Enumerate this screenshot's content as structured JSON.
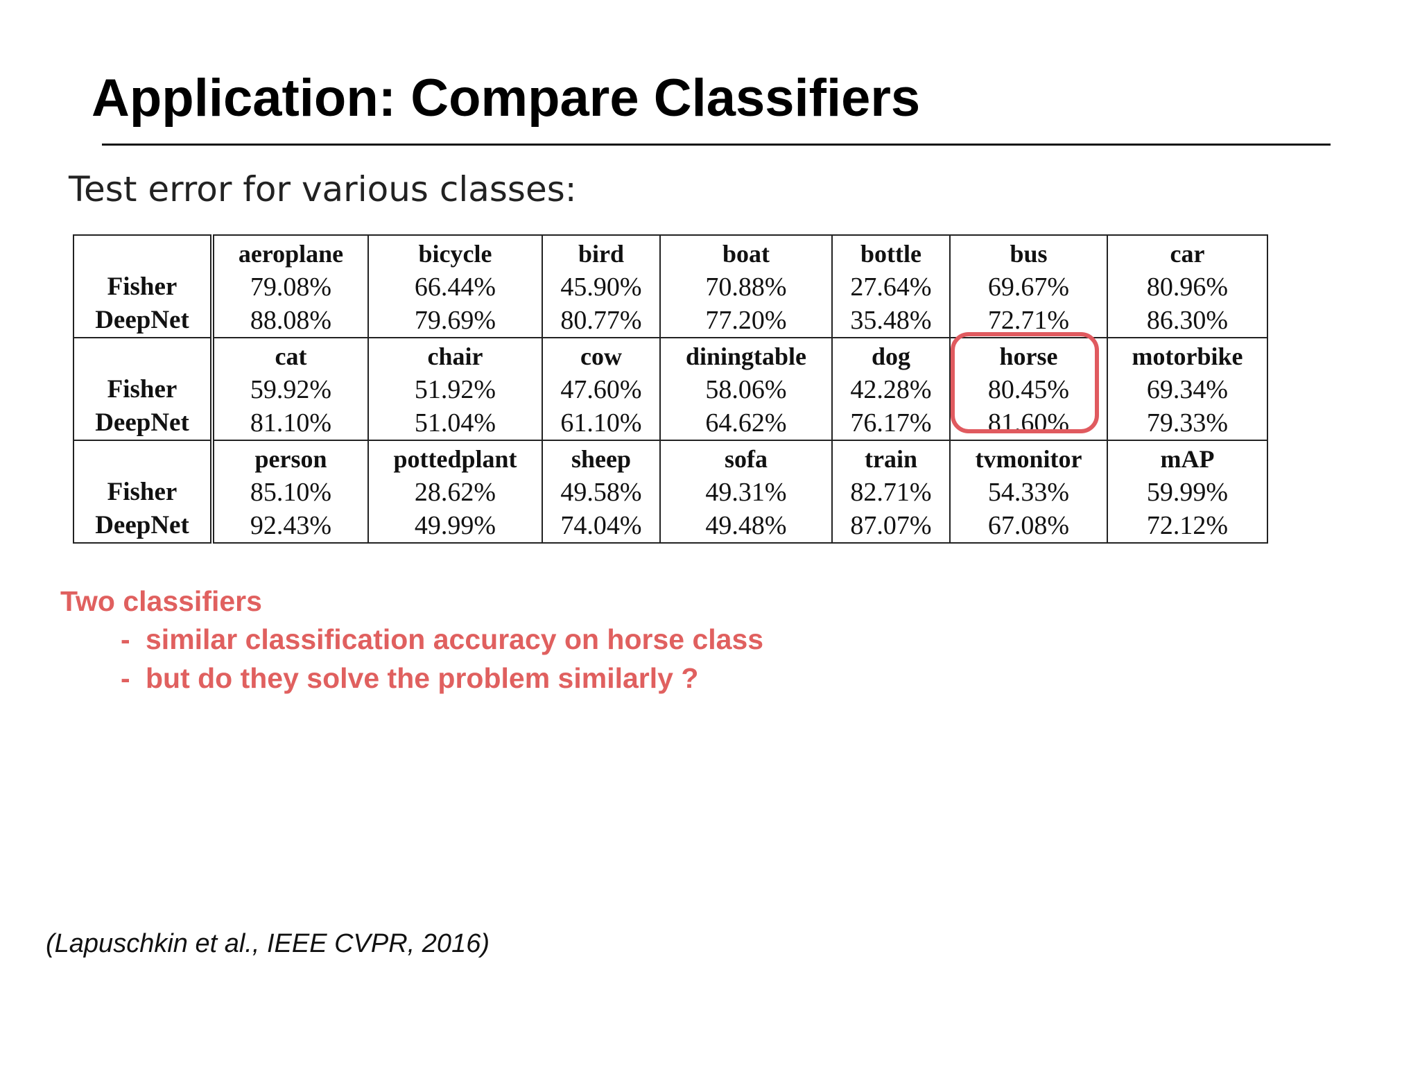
{
  "slide": {
    "title": "Application: Compare Classifiers",
    "subtitle": "Test error for various classes:"
  },
  "table": {
    "row_labels": [
      "Fisher",
      "DeepNet"
    ],
    "groups": [
      {
        "classes": [
          "aeroplane",
          "bicycle",
          "bird",
          "boat",
          "bottle",
          "bus",
          "car"
        ],
        "fisher": [
          "79.08%",
          "66.44%",
          "45.90%",
          "70.88%",
          "27.64%",
          "69.67%",
          "80.96%"
        ],
        "deepnet": [
          "88.08%",
          "79.69%",
          "80.77%",
          "77.20%",
          "35.48%",
          "72.71%",
          "86.30%"
        ]
      },
      {
        "classes": [
          "cat",
          "chair",
          "cow",
          "diningtable",
          "dog",
          "horse",
          "motorbike"
        ],
        "fisher": [
          "59.92%",
          "51.92%",
          "47.60%",
          "58.06%",
          "42.28%",
          "80.45%",
          "69.34%"
        ],
        "deepnet": [
          "81.10%",
          "51.04%",
          "61.10%",
          "64.62%",
          "76.17%",
          "81.60%",
          "79.33%"
        ]
      },
      {
        "classes": [
          "person",
          "pottedplant",
          "sheep",
          "sofa",
          "train",
          "tvmonitor",
          "mAP"
        ],
        "fisher": [
          "85.10%",
          "28.62%",
          "49.58%",
          "49.31%",
          "82.71%",
          "54.33%",
          "59.99%"
        ],
        "deepnet": [
          "92.43%",
          "49.99%",
          "74.04%",
          "49.48%",
          "87.07%",
          "67.08%",
          "72.12%"
        ]
      }
    ],
    "highlight_color": "#e05a5f"
  },
  "notes": {
    "heading": "Two classifiers",
    "bullets": [
      "similar classification accuracy on horse class",
      "but do they solve the problem similarly ?"
    ],
    "bullet_marker": "-",
    "color": "#e0605f"
  },
  "citation": "(Lapuschkin et al., IEEE CVPR, 2016)"
}
